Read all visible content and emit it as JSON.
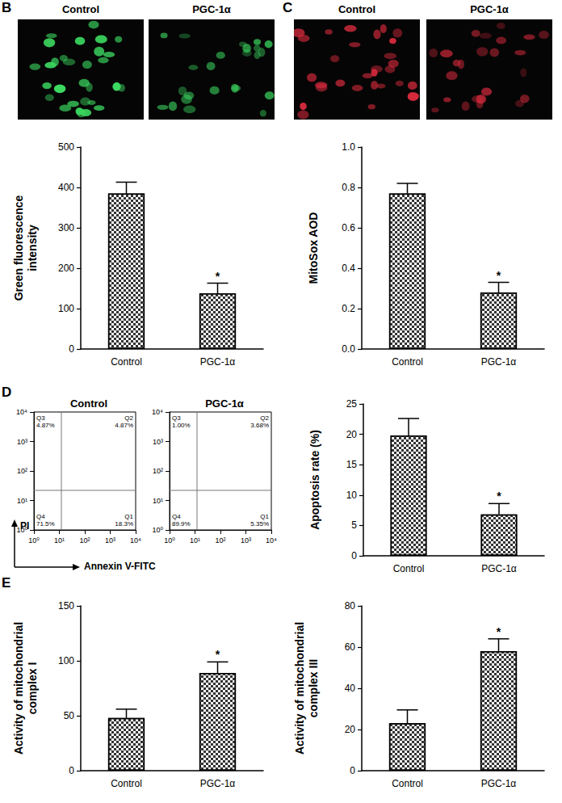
{
  "panel_labels": [
    "B",
    "C",
    "D",
    "E"
  ],
  "micrographs": [
    {
      "titles": [
        "Control",
        "PGC-1α"
      ],
      "color": "#3cd860"
    },
    {
      "titles": [
        "Control",
        "PGC-1α"
      ],
      "color": "#d42a3c"
    }
  ],
  "chart_data": [
    {
      "type": "bar",
      "ylabel": "Green fluorescence\nintensity",
      "categories": [
        "Control",
        "PGC-1α"
      ],
      "values": [
        385,
        138
      ],
      "errors": [
        28,
        25
      ],
      "annotations": [
        {
          "category": "PGC-1α",
          "text": "*"
        }
      ],
      "color": "#333333",
      "ylim": [
        0,
        500
      ],
      "yticks": [
        0,
        100,
        200,
        300,
        400,
        500
      ],
      "grid": false
    },
    {
      "type": "bar",
      "ylabel": "MitoSox AOD",
      "categories": [
        "Control",
        "PGC-1α"
      ],
      "values": [
        0.77,
        0.28
      ],
      "errors": [
        0.05,
        0.05
      ],
      "annotations": [
        {
          "category": "PGC-1α",
          "text": "*"
        }
      ],
      "color": "#333333",
      "ylim": [
        0,
        1
      ],
      "yticks": [
        {
          "value": 0,
          "label": "0.0"
        },
        0.2,
        0.4,
        0.6,
        0.8,
        {
          "value": 1,
          "label": "1.0"
        }
      ],
      "grid": false
    },
    {
      "type": "quadrant",
      "title": "Control",
      "xlabel": "Annexin V-FITC",
      "ylabel": "PI",
      "log": true,
      "xlim": [
        1,
        10000
      ],
      "ylim": [
        1,
        10000
      ],
      "xticks": [
        {
          "value": 1,
          "label": "10⁰"
        },
        {
          "value": 10,
          "label": "10¹"
        },
        {
          "value": 100,
          "label": "10²"
        },
        {
          "value": 1000,
          "label": "10³"
        },
        {
          "value": 10000,
          "label": "10⁴"
        }
      ],
      "yticks": [
        {
          "value": 1,
          "label": "10⁰"
        },
        {
          "value": 10,
          "label": "10¹"
        },
        {
          "value": 100,
          "label": "10²"
        },
        {
          "value": 1000,
          "label": "10³"
        },
        {
          "value": 10000,
          "label": "10⁴"
        }
      ],
      "quadrant_gates": {
        "x": 12,
        "y": 22
      },
      "quadrants": [
        {
          "name": "Q3",
          "value": 4.87,
          "label": "4.87%"
        },
        {
          "name": "Q2",
          "value": 4.87,
          "label": "4.87%"
        },
        {
          "name": "Q4",
          "value": 71.5,
          "label": "71.5%"
        },
        {
          "name": "Q1",
          "value": 18.3,
          "label": "18.3%"
        }
      ]
    },
    {
      "type": "quadrant",
      "title": "PGC-1α",
      "log": true,
      "xlim": [
        1,
        10000
      ],
      "ylim": [
        1,
        10000
      ],
      "xticks": [
        {
          "value": 1,
          "label": "10⁰"
        },
        {
          "value": 10,
          "label": "10¹"
        },
        {
          "value": 100,
          "label": "10²"
        },
        {
          "value": 1000,
          "label": "10³"
        },
        {
          "value": 10000,
          "label": "10⁴"
        }
      ],
      "yticks": [
        {
          "value": 1,
          "label": "10⁰"
        },
        {
          "value": 10,
          "label": "10¹"
        },
        {
          "value": 100,
          "label": "10²"
        },
        {
          "value": 1000,
          "label": "10³"
        },
        {
          "value": 10000,
          "label": "10⁴"
        }
      ],
      "quadrant_gates": {
        "x": 12,
        "y": 22
      },
      "quadrants": [
        {
          "name": "Q3",
          "value": 1.0,
          "label": "1.00%"
        },
        {
          "name": "Q2",
          "value": 3.68,
          "label": "3.68%"
        },
        {
          "name": "Q4",
          "value": 89.9,
          "label": "89.9%"
        },
        {
          "name": "Q1",
          "value": 5.35,
          "label": "5.35%"
        }
      ]
    },
    {
      "type": "bar",
      "ylabel": "Apoptosis rate (%)",
      "categories": [
        "Control",
        "PGC-1α"
      ],
      "values": [
        19.8,
        6.8
      ],
      "errors": [
        2.8,
        1.8
      ],
      "annotations": [
        {
          "category": "PGC-1α",
          "text": "*"
        }
      ],
      "color": "#333333",
      "ylim": [
        0,
        25
      ],
      "yticks": [
        0,
        5,
        10,
        15,
        20,
        25
      ],
      "grid": false
    },
    {
      "type": "bar",
      "ylabel": "Activity of mitochondrial\ncomplex I",
      "categories": [
        "Control",
        "PGC-1α"
      ],
      "values": [
        48,
        89
      ],
      "errors": [
        8,
        10
      ],
      "annotations": [
        {
          "category": "PGC-1α",
          "text": "*"
        }
      ],
      "color": "#333333",
      "ylim": [
        0,
        150
      ],
      "yticks": [
        0,
        50,
        100,
        150
      ],
      "grid": false
    },
    {
      "type": "bar",
      "ylabel": "Activity of mitochondrial\ncomplex III",
      "categories": [
        "Control",
        "PGC-1α"
      ],
      "values": [
        23,
        58
      ],
      "errors": [
        6.5,
        6
      ],
      "annotations": [
        {
          "category": "PGC-1α",
          "text": "*"
        }
      ],
      "color": "#333333",
      "ylim": [
        0,
        80
      ],
      "yticks": [
        0,
        20,
        40,
        60,
        80
      ],
      "grid": false
    }
  ]
}
